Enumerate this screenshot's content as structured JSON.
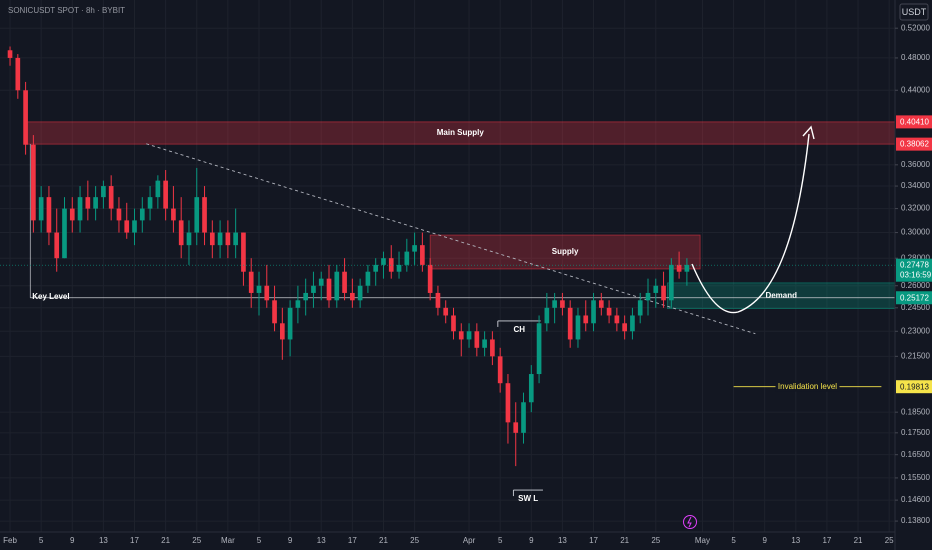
{
  "chart_data": {
    "type": "candlestick",
    "title": "SONICUSDT SPOT · 8h · BYBIT",
    "currency": "USDT",
    "log_scale": true,
    "grid": true,
    "up_color": "#089981",
    "down_color": "#f23645",
    "xlim": [
      -1.29,
      113.75
    ],
    "ylim": [
      0.134,
      0.561
    ],
    "xticks": [
      {
        "value": 0,
        "label": "Feb"
      },
      {
        "value": 4,
        "label": "5"
      },
      {
        "value": 8,
        "label": "9"
      },
      {
        "value": 12,
        "label": "13"
      },
      {
        "value": 16,
        "label": "17"
      },
      {
        "value": 20,
        "label": "21"
      },
      {
        "value": 24,
        "label": "25"
      },
      {
        "value": 28,
        "label": "Mar"
      },
      {
        "value": 32,
        "label": "5"
      },
      {
        "value": 36,
        "label": "9"
      },
      {
        "value": 40,
        "label": "13"
      },
      {
        "value": 44,
        "label": "17"
      },
      {
        "value": 48,
        "label": "21"
      },
      {
        "value": 52,
        "label": "25"
      },
      {
        "value": 59,
        "label": "Apr"
      },
      {
        "value": 63,
        "label": "5"
      },
      {
        "value": 67,
        "label": "9"
      },
      {
        "value": 71,
        "label": "13"
      },
      {
        "value": 75,
        "label": "17"
      },
      {
        "value": 79,
        "label": "21"
      },
      {
        "value": 83,
        "label": "25"
      },
      {
        "value": 89,
        "label": "May"
      },
      {
        "value": 93,
        "label": "5"
      },
      {
        "value": 97,
        "label": "9"
      },
      {
        "value": 101,
        "label": "13"
      },
      {
        "value": 105,
        "label": "17"
      },
      {
        "value": 109,
        "label": "21"
      },
      {
        "value": 113,
        "label": "25"
      }
    ],
    "yticks": [
      {
        "value": 0.52,
        "label": "0.52000"
      },
      {
        "value": 0.48,
        "label": "0.48000"
      },
      {
        "value": 0.44,
        "label": "0.44000"
      },
      {
        "value": 0.36,
        "label": "0.36000"
      },
      {
        "value": 0.34,
        "label": "0.34000"
      },
      {
        "value": 0.32,
        "label": "0.32000"
      },
      {
        "value": 0.3,
        "label": "0.30000"
      },
      {
        "value": 0.28,
        "label": "0.28000"
      },
      {
        "value": 0.26,
        "label": "0.26000"
      },
      {
        "value": 0.245,
        "label": "0.24500"
      },
      {
        "value": 0.23,
        "label": "0.23000"
      },
      {
        "value": 0.215,
        "label": "0.21500"
      },
      {
        "value": 0.185,
        "label": "0.18500"
      },
      {
        "value": 0.175,
        "label": "0.17500"
      },
      {
        "value": 0.165,
        "label": "0.16500"
      },
      {
        "value": 0.155,
        "label": "0.15500"
      },
      {
        "value": 0.146,
        "label": "0.14600"
      },
      {
        "value": 0.138,
        "label": "0.13800"
      }
    ],
    "open": [
      0.49,
      0.48,
      0.44,
      0.38,
      0.31,
      0.33,
      0.3,
      0.28,
      0.32,
      0.31,
      0.33,
      0.32,
      0.33,
      0.34,
      0.32,
      0.31,
      0.3,
      0.31,
      0.32,
      0.33,
      0.345,
      0.32,
      0.31,
      0.29,
      0.3,
      0.33,
      0.3,
      0.29,
      0.3,
      0.29,
      0.3,
      0.27,
      0.255,
      0.26,
      0.25,
      0.235,
      0.225,
      0.245,
      0.25,
      0.255,
      0.26,
      0.265,
      0.25,
      0.27,
      0.255,
      0.25,
      0.26,
      0.27,
      0.275,
      0.28,
      0.27,
      0.275,
      0.285,
      0.29,
      0.275,
      0.255,
      0.245,
      0.24,
      0.23,
      0.225,
      0.23,
      0.22,
      0.225,
      0.215,
      0.2,
      0.18,
      0.175,
      0.19,
      0.205,
      0.235,
      0.245,
      0.25,
      0.245,
      0.225,
      0.24,
      0.235,
      0.25,
      0.245,
      0.24,
      0.235,
      0.23,
      0.24,
      0.25,
      0.255,
      0.26,
      0.25,
      0.275,
      0.27
    ],
    "high": [
      0.495,
      0.485,
      0.45,
      0.39,
      0.34,
      0.34,
      0.32,
      0.33,
      0.33,
      0.34,
      0.345,
      0.34,
      0.345,
      0.35,
      0.33,
      0.325,
      0.32,
      0.33,
      0.34,
      0.35,
      0.355,
      0.34,
      0.33,
      0.31,
      0.357,
      0.34,
      0.31,
      0.31,
      0.31,
      0.32,
      0.3,
      0.28,
      0.27,
      0.275,
      0.26,
      0.245,
      0.25,
      0.26,
      0.265,
      0.27,
      0.27,
      0.275,
      0.275,
      0.28,
      0.265,
      0.265,
      0.275,
      0.28,
      0.285,
      0.29,
      0.285,
      0.295,
      0.3,
      0.3,
      0.28,
      0.26,
      0.25,
      0.245,
      0.235,
      0.235,
      0.235,
      0.23,
      0.23,
      0.22,
      0.205,
      0.19,
      0.195,
      0.21,
      0.24,
      0.255,
      0.255,
      0.255,
      0.25,
      0.245,
      0.25,
      0.255,
      0.255,
      0.25,
      0.245,
      0.24,
      0.245,
      0.255,
      0.265,
      0.265,
      0.27,
      0.28,
      0.285,
      0.28
    ],
    "low": [
      0.47,
      0.43,
      0.37,
      0.3,
      0.3,
      0.29,
      0.27,
      0.28,
      0.3,
      0.3,
      0.31,
      0.31,
      0.32,
      0.31,
      0.3,
      0.295,
      0.29,
      0.3,
      0.31,
      0.32,
      0.31,
      0.3,
      0.28,
      0.275,
      0.29,
      0.29,
      0.28,
      0.28,
      0.28,
      0.28,
      0.26,
      0.245,
      0.24,
      0.245,
      0.23,
      0.213,
      0.215,
      0.235,
      0.24,
      0.245,
      0.25,
      0.245,
      0.245,
      0.25,
      0.245,
      0.245,
      0.255,
      0.26,
      0.265,
      0.265,
      0.265,
      0.27,
      0.275,
      0.27,
      0.25,
      0.24,
      0.235,
      0.225,
      0.215,
      0.22,
      0.215,
      0.215,
      0.21,
      0.195,
      0.17,
      0.16,
      0.17,
      0.185,
      0.2,
      0.23,
      0.235,
      0.24,
      0.22,
      0.22,
      0.23,
      0.23,
      0.24,
      0.235,
      0.23,
      0.225,
      0.225,
      0.235,
      0.24,
      0.245,
      0.245,
      0.245,
      0.265,
      0.26
    ],
    "close": [
      0.48,
      0.44,
      0.38,
      0.31,
      0.33,
      0.3,
      0.28,
      0.32,
      0.31,
      0.33,
      0.32,
      0.33,
      0.34,
      0.32,
      0.31,
      0.3,
      0.31,
      0.32,
      0.33,
      0.345,
      0.32,
      0.31,
      0.29,
      0.3,
      0.33,
      0.3,
      0.29,
      0.3,
      0.29,
      0.3,
      0.27,
      0.255,
      0.26,
      0.25,
      0.235,
      0.225,
      0.245,
      0.25,
      0.255,
      0.26,
      0.265,
      0.25,
      0.27,
      0.255,
      0.25,
      0.26,
      0.27,
      0.275,
      0.28,
      0.27,
      0.275,
      0.285,
      0.29,
      0.275,
      0.255,
      0.245,
      0.24,
      0.23,
      0.225,
      0.23,
      0.22,
      0.225,
      0.215,
      0.2,
      0.18,
      0.175,
      0.19,
      0.205,
      0.235,
      0.245,
      0.25,
      0.245,
      0.225,
      0.24,
      0.235,
      0.25,
      0.245,
      0.24,
      0.235,
      0.23,
      0.24,
      0.25,
      0.255,
      0.26,
      0.25,
      0.275,
      0.27,
      0.275
    ],
    "zones": [
      {
        "label": "Main Supply",
        "top": {
          "value": 0.4041,
          "label": "0.40410"
        },
        "bottom": {
          "value": 0.38062,
          "label": "0.38062"
        },
        "start": 2,
        "color": "#f23645"
      },
      {
        "label": "Supply",
        "top": 0.298,
        "bottom": 0.272,
        "start": 54,
        "end": 88.7,
        "color": "#f23645"
      },
      {
        "label": "Demand",
        "top": 0.262,
        "bottom": 0.2445,
        "start": 84.5,
        "color": "#089981"
      }
    ],
    "key_level": {
      "label": "Key Level",
      "value": {
        "value": 0.25172,
        "label": "0.25172"
      },
      "start": 2.6,
      "color": "#089981"
    },
    "invalidation": {
      "label": "Invalidation level",
      "value": {
        "value": 0.19813,
        "label": "0.19813"
      },
      "start": 93,
      "end": 112,
      "color": "#f5e34a"
    },
    "last_price": {
      "value": 0.27478,
      "label": "0.27478",
      "countdown": "03:16:59",
      "color": "#089981"
    },
    "trendline": {
      "start": [
        17.5,
        0.381
      ],
      "end": [
        95.8,
        0.2285
      ]
    },
    "markers": [
      {
        "label": "CH",
        "value": 0.2365,
        "start": 62.7,
        "end": 68.2
      },
      {
        "label": "SW L",
        "value": 0.15,
        "start": 64.7,
        "end": 68.5
      }
    ]
  }
}
